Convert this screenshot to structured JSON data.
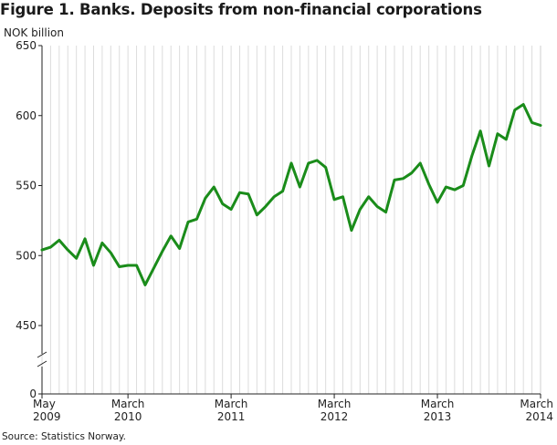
{
  "chart_data": {
    "type": "line",
    "title": "Figure 1. Banks. Deposits from non-financial corporations",
    "ylabel": "NOK billion",
    "xlabel": "",
    "ylim": [
      0,
      650
    ],
    "y_ticks": [
      "0",
      "450",
      "500",
      "550",
      "600",
      "650"
    ],
    "axis_break": "between 0 and 450",
    "x_ticks": [
      {
        "month": "May",
        "year": "2009"
      },
      {
        "month": "March",
        "year": "2010"
      },
      {
        "month": "March",
        "year": "2011"
      },
      {
        "month": "March",
        "year": "2012"
      },
      {
        "month": "March",
        "year": "2013"
      },
      {
        "month": "March",
        "year": "2014"
      }
    ],
    "grid": "vertical",
    "series_color": "#1a8c1a",
    "series": [
      {
        "name": "",
        "x_start": "2009-05",
        "x_end": "2014-03",
        "values": [
          504,
          506,
          511,
          504,
          498,
          512,
          493,
          509,
          502,
          492,
          493,
          493,
          479,
          491,
          503,
          514,
          505,
          524,
          526,
          541,
          549,
          537,
          533,
          545,
          544,
          529,
          535,
          542,
          546,
          566,
          549,
          566,
          568,
          563,
          540,
          542,
          518,
          533,
          542,
          535,
          531,
          554,
          555,
          559,
          566,
          551,
          538,
          549,
          547,
          550,
          571,
          589,
          564,
          587,
          583,
          604,
          608,
          595,
          593
        ]
      }
    ],
    "source": "Source: Statistics Norway."
  }
}
